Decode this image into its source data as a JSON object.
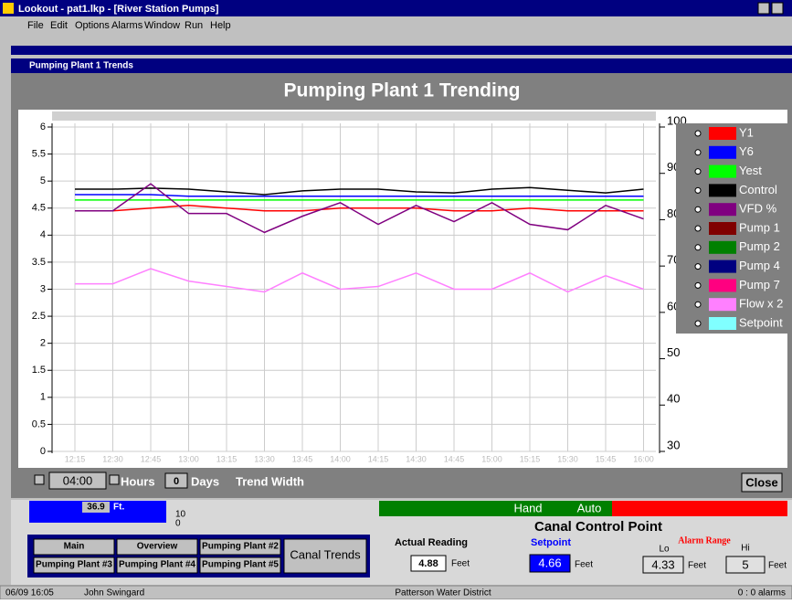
{
  "window": {
    "title": "Lookout - pat1.lkp - [River Station Pumps]",
    "menu": [
      "File",
      "Edit",
      "Options",
      "Alarms",
      "Window",
      "Run",
      "Help"
    ]
  },
  "child_window": {
    "title": "Pumping Plant 1 Trends"
  },
  "chart_data": {
    "type": "line",
    "title": "Pumping Plant 1 Trending",
    "x": [
      "12:15",
      "12:30",
      "12:45",
      "13:00",
      "13:15",
      "13:30",
      "13:45",
      "14:00",
      "14:15",
      "14:30",
      "14:45",
      "15:00",
      "15:15",
      "15:30",
      "15:45",
      "16:00"
    ],
    "ylim": [
      0,
      6
    ],
    "yticks": [
      0,
      0.5,
      1,
      1.5,
      2,
      2.5,
      3,
      3.5,
      4,
      4.5,
      5,
      5.5,
      6
    ],
    "y2lim": [
      30,
      100
    ],
    "y2ticks": [
      30,
      40,
      50,
      60,
      70,
      80,
      90,
      100
    ],
    "grid": true,
    "series": [
      {
        "name": "Y1",
        "color": "#ff0000",
        "values": [
          4.45,
          4.45,
          4.5,
          4.55,
          4.5,
          4.45,
          4.45,
          4.5,
          4.5,
          4.5,
          4.45,
          4.45,
          4.5,
          4.45,
          4.45,
          4.45
        ]
      },
      {
        "name": "Y6",
        "color": "#0000ff",
        "values": [
          4.75,
          4.75,
          4.75,
          4.72,
          4.72,
          4.72,
          4.72,
          4.72,
          4.72,
          4.72,
          4.72,
          4.72,
          4.72,
          4.72,
          4.72,
          4.72
        ]
      },
      {
        "name": "Yest",
        "color": "#00ff00",
        "values": [
          4.65,
          4.65,
          4.65,
          4.65,
          4.65,
          4.65,
          4.65,
          4.65,
          4.65,
          4.65,
          4.65,
          4.65,
          4.65,
          4.65,
          4.65,
          4.65
        ]
      },
      {
        "name": "Control",
        "color": "#000000",
        "values": [
          4.85,
          4.85,
          4.87,
          4.85,
          4.8,
          4.75,
          4.82,
          4.85,
          4.85,
          4.8,
          4.78,
          4.85,
          4.88,
          4.83,
          4.78,
          4.85
        ]
      },
      {
        "name": "VFD %",
        "color": "#800080",
        "values": [
          4.45,
          4.45,
          4.95,
          4.4,
          4.4,
          4.05,
          4.35,
          4.6,
          4.2,
          4.55,
          4.25,
          4.6,
          4.2,
          4.1,
          4.55,
          4.3
        ]
      },
      {
        "name": "Pump 1",
        "color": "#800000"
      },
      {
        "name": "Pump 2",
        "color": "#008000"
      },
      {
        "name": "Pump 4",
        "color": "#000080"
      },
      {
        "name": "Pump 7",
        "color": "#ff0080"
      },
      {
        "name": "Flow x 2",
        "color": "#ff80ff",
        "values": [
          3.1,
          3.1,
          3.38,
          3.15,
          3.05,
          2.95,
          3.3,
          3.0,
          3.05,
          3.3,
          3.0,
          3.0,
          3.3,
          2.95,
          3.25,
          3.0
        ]
      },
      {
        "name": "Setpoint",
        "color": "#80ffff"
      }
    ]
  },
  "trend_controls": {
    "width": "04:00",
    "hours": "Hours",
    "days_value": "0",
    "days": "Days",
    "trend_width": "Trend Width",
    "close": "Close"
  },
  "panel": {
    "level": "36.9",
    "level_unit": "Ft.",
    "scale_hi": "10",
    "scale_lo": "0",
    "buttons": [
      "Main",
      "Overview",
      "Pumping Plant #2",
      "Canal Trends",
      "Pumping Plant #3",
      "Pumping Plant #4",
      "Pumping Plant #5"
    ],
    "hand": "Hand",
    "auto": "Auto",
    "heading": "Canal Control Point",
    "actual_label": "Actual Reading",
    "actual_value": "4.88",
    "actual_unit": "Feet",
    "setpoint_label": "Setpoint",
    "setpoint_value": "4.66",
    "setpoint_unit": "Feet",
    "alarm_label": "Alarm Range",
    "lo_label": "Lo",
    "hi_label": "Hi",
    "lo_value": "4.33",
    "lo_unit": "Feet",
    "hi_value": "5",
    "hi_unit": "Feet"
  },
  "status_bar": [
    "06/09 16:05",
    "John Swingard",
    "Patterson Water District",
    "0 : 0 alarms"
  ]
}
